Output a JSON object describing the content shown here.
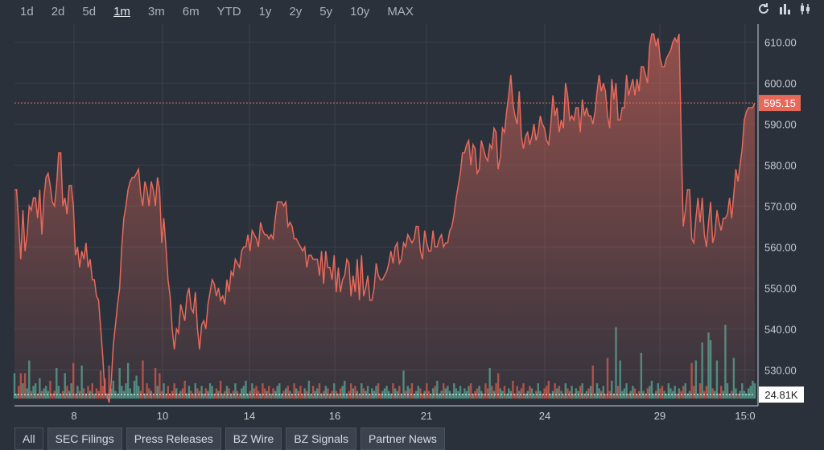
{
  "range_tabs": [
    "1d",
    "2d",
    "5d",
    "1m",
    "3m",
    "6m",
    "YTD",
    "1y",
    "2y",
    "5y",
    "10y",
    "MAX"
  ],
  "active_range": "1m",
  "toolbar": {
    "icons": [
      "refresh-icon",
      "bar-chart-icon",
      "candlestick-icon"
    ]
  },
  "news_tabs": [
    "All",
    "SEC Filings",
    "Press Releases",
    "BZ Wire",
    "BZ Signals",
    "Partner News"
  ],
  "active_news": "All",
  "colors": {
    "line": "#e8695a",
    "vol_up": "#4a9e8e",
    "vol_down": "#c0574e",
    "bg": "#2b313b",
    "grid": "#3a414c"
  },
  "chart_data": {
    "type": "area",
    "series": [
      {
        "values": [
          574,
          574,
          566,
          557,
          569,
          559,
          563,
          570,
          569,
          572,
          572,
          567,
          574,
          563,
          572,
          577,
          578,
          575,
          571,
          570,
          575,
          583,
          583,
          570,
          572,
          568,
          575,
          575,
          570,
          558,
          560,
          555,
          559,
          557,
          561,
          555,
          557,
          552,
          552,
          548,
          547,
          540,
          533,
          524,
          524,
          522,
          527,
          536,
          541,
          546,
          550,
          560,
          567,
          570,
          574,
          576,
          577,
          577,
          578,
          579,
          573,
          570,
          576,
          574,
          570,
          576,
          574,
          570,
          577,
          574,
          561,
          567,
          560,
          552,
          548,
          540,
          535,
          540,
          539,
          546,
          544,
          542,
          548,
          550,
          545,
          544,
          549,
          540,
          535,
          541,
          542,
          540,
          546,
          549,
          552,
          551,
          548,
          550,
          547,
          548,
          546,
          552,
          549,
          554,
          553,
          557,
          556,
          555,
          559,
          560,
          560,
          563,
          559,
          564,
          563,
          562,
          560,
          566,
          564,
          563,
          563,
          562,
          563,
          562,
          567,
          571,
          571,
          571,
          570,
          571,
          565,
          566,
          565,
          562,
          562,
          561,
          560,
          559,
          560,
          555,
          558,
          558,
          557,
          557,
          557,
          553,
          559,
          551,
          559,
          555,
          555,
          552,
          558,
          549,
          555,
          549,
          552,
          553,
          557,
          556,
          548,
          553,
          549,
          557,
          547,
          558,
          548,
          550,
          553,
          547,
          547,
          550,
          556,
          553,
          552,
          552,
          553,
          554,
          556,
          559,
          556,
          560,
          561,
          556,
          557,
          561,
          560,
          563,
          562,
          561,
          562,
          565,
          565,
          559,
          557,
          564,
          561,
          559,
          559,
          564,
          560,
          560,
          562,
          563,
          560,
          561,
          561,
          564,
          565,
          568,
          572,
          575,
          578,
          583,
          583,
          585,
          586,
          580,
          585,
          584,
          578,
          579,
          586,
          584,
          582,
          581,
          585,
          584,
          589,
          588,
          579,
          582,
          589,
          588,
          593,
          597,
          602,
          595,
          592,
          590,
          598,
          587,
          584,
          587,
          588,
          585,
          587,
          590,
          586,
          588,
          592,
          590,
          589,
          586,
          585,
          590,
          597,
          592,
          594,
          588,
          591,
          589,
          600,
          597,
          591,
          592,
          591,
          594,
          594,
          588,
          596,
          592,
          594,
          592,
          592,
          590,
          593,
          598,
          602,
          598,
          600,
          598,
          592,
          589,
          601,
          596,
          600,
          591,
          591,
          594,
          594,
          602,
          597,
          599,
          601,
          597,
          601,
          598,
          604,
          604,
          602,
          600,
          609,
          612,
          612,
          609,
          611,
          606,
          604,
          604,
          606,
          607,
          608,
          610,
          611,
          610,
          612,
          587,
          565,
          569,
          574,
          574,
          562,
          561,
          567,
          572,
          566,
          572,
          563,
          560,
          566,
          571,
          561,
          563,
          569,
          566,
          564,
          567,
          567,
          568,
          572,
          567,
          573,
          579,
          576,
          580,
          584,
          591,
          593,
          594,
          594,
          594,
          595.15
        ],
        "volume": [
          1,
          0.2,
          0.5,
          1,
          0.6,
          1,
          0.4,
          1.5,
          0.3,
          0.5,
          0.6,
          0.2,
          0.8,
          0.3,
          0.4,
          0.5,
          0.3,
          0.7,
          0.2,
          0.3,
          1.2,
          0.5,
          0.2,
          0.3,
          1,
          0.5,
          0.3,
          0.6,
          1.4,
          0.2,
          0.5,
          0.3,
          1.3,
          0.4,
          0.2,
          0.5,
          0.3,
          0.6,
          0.2,
          0.4,
          0.3,
          1.1,
          0.5,
          0.8,
          0.2,
          1.3,
          0.4,
          0.7,
          0.3,
          0.2,
          1.2,
          0.5,
          0.3,
          0.6,
          1.4,
          0.4,
          0.2,
          0.7,
          0.9,
          0.5,
          0.3,
          1.5,
          0.2,
          0.6,
          0.4,
          0.3,
          0.2,
          1.2,
          0.5,
          1,
          0.3,
          0.6,
          0.2,
          0.5,
          0.2,
          0.3,
          0.6,
          0.4,
          0.2,
          0.3,
          0.4,
          0.7,
          0.2,
          0.5,
          0.3,
          0.2,
          0.6,
          0.4,
          0.3,
          0.5,
          0.2,
          0.4,
          0.3,
          0.6,
          0.5,
          0.2,
          0.4,
          0.3,
          0.7,
          0.2,
          0.3,
          0.5,
          0.4,
          0.2,
          0.3,
          0.6,
          0.3,
          0.2,
          0.4,
          0.5,
          0.7,
          0.2,
          0.3,
          0.6,
          0.4,
          0.5,
          0.3,
          0.2,
          0.6,
          0.4,
          0.3,
          0.5,
          0.2,
          0.4,
          0.3,
          0.5,
          0.6,
          0.2,
          0.3,
          0.4,
          0.5,
          0.3,
          0.2,
          0.6,
          0.4,
          0.3,
          0.5,
          0.2,
          0.4,
          0.3,
          0.7,
          0.2,
          0.5,
          0.3,
          0.4,
          0.6,
          0.2,
          0.3,
          0.5,
          0.4,
          0.2,
          0.3,
          0.6,
          0.3,
          0.2,
          0.4,
          0.5,
          0.7,
          0.2,
          0.3,
          0.6,
          0.4,
          0.5,
          0.3,
          0.2,
          0.6,
          0.4,
          0.3,
          0.5,
          0.2,
          0.4,
          0.3,
          0.5,
          0.6,
          0.2,
          0.3,
          0.4,
          0.5,
          0.3,
          0.2,
          0.6,
          0.4,
          0.3,
          0.5,
          0.2,
          1.1,
          0.3,
          0.5,
          0.4,
          0.6,
          0.2,
          0.3,
          0.5,
          0.4,
          0.2,
          0.3,
          0.6,
          0.3,
          0.2,
          0.4,
          0.5,
          0.7,
          0.2,
          0.3,
          0.6,
          0.4,
          0.5,
          0.3,
          0.2,
          0.6,
          0.4,
          0.3,
          0.5,
          0.2,
          0.4,
          0.3,
          0.5,
          0.6,
          0.2,
          0.3,
          0.4,
          0.5,
          0.3,
          0.2,
          0.6,
          0.4,
          1.2,
          0.5,
          0.3,
          0.6,
          1,
          0.4,
          0.3,
          0.5,
          0.2,
          0.4,
          0.3,
          0.7,
          0.2,
          0.5,
          0.3,
          0.4,
          0.6,
          0.2,
          0.3,
          0.5,
          0.4,
          0.2,
          0.3,
          0.6,
          0.3,
          0.2,
          0.4,
          0.5,
          0.7,
          0.2,
          0.3,
          0.6,
          0.4,
          0.5,
          0.3,
          0.2,
          0.6,
          0.4,
          0.3,
          0.5,
          0.2,
          0.4,
          0.3,
          0.5,
          0.6,
          0.2,
          0.3,
          0.4,
          0.5,
          1.3,
          0.2,
          0.6,
          0.4,
          0.3,
          0.5,
          0.2,
          1.6,
          0.3,
          0.7,
          0.2,
          2.8,
          0.5,
          1.5,
          0.3,
          0.4,
          0.6,
          0.2,
          0.3,
          0.5,
          0.4,
          0.2,
          0.3,
          1.8,
          0.3,
          0.2,
          0.4,
          0.5,
          0.7,
          0.2,
          0.3,
          0.6,
          0.4,
          0.5,
          0.3,
          0.2,
          0.6,
          0.4,
          0.3,
          0.5,
          0.2,
          0.4,
          0.3,
          0.5,
          0.6,
          0.2,
          0.3,
          1.4,
          0.5,
          1.5,
          0.2,
          0.6,
          2.2,
          0.3,
          0.5,
          2.6,
          2.3,
          0.4,
          0.3,
          1.5,
          0.2,
          0.5,
          0.3,
          2.9,
          0.6,
          0.2,
          0.3,
          1.6,
          0.4,
          0.2,
          0.3,
          0.6,
          0.3,
          0.2,
          0.4,
          0.5,
          0.7,
          0.6
        ]
      }
    ],
    "x_ticks": [
      "8",
      "10",
      "14",
      "16",
      "21",
      "24",
      "29",
      "15:0"
    ],
    "y_ticks": [
      "610.00",
      "600.00",
      "590.00",
      "580.00",
      "570.00",
      "560.00",
      "550.00",
      "540.00",
      "530.00"
    ],
    "ylim": [
      523,
      614
    ],
    "last_price": "595.15",
    "volume_label": "24.81K"
  }
}
